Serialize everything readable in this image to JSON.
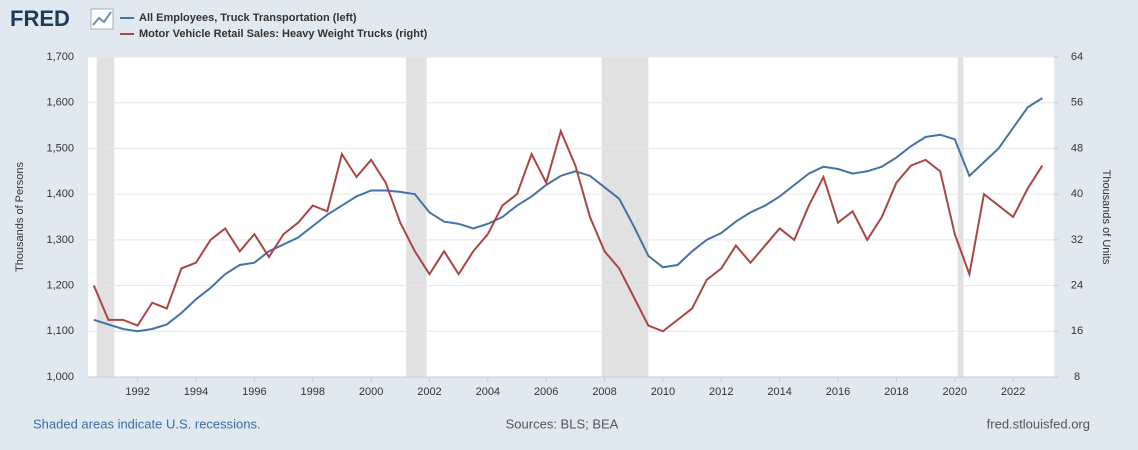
{
  "chart_data": {
    "type": "line",
    "logo": "FRED",
    "y_label": "Thousands of Persons",
    "y2_label": "Thousands of Units",
    "note": "Shaded areas indicate U.S. recessions.",
    "source": "Sources: BLS; BEA",
    "site": "fred.stlouisfed.org",
    "x": [
      1990.5,
      1991,
      1991.5,
      1992,
      1992.5,
      1993,
      1993.5,
      1994,
      1994.5,
      1995,
      1995.5,
      1996,
      1996.5,
      1997,
      1997.5,
      1998,
      1998.5,
      1999,
      1999.5,
      2000,
      2000.5,
      2001,
      2001.5,
      2002,
      2002.5,
      2003,
      2003.5,
      2004,
      2004.5,
      2005,
      2005.5,
      2006,
      2006.5,
      2007,
      2007.5,
      2008,
      2008.5,
      2009,
      2009.5,
      2010,
      2010.5,
      2011,
      2011.5,
      2012,
      2012.5,
      2013,
      2013.5,
      2014,
      2014.5,
      2015,
      2015.5,
      2016,
      2016.5,
      2017,
      2017.5,
      2018,
      2018.5,
      2019,
      2019.5,
      2020,
      2020.5,
      2021,
      2021.5,
      2022,
      2022.5,
      2023
    ],
    "series": [
      {
        "name": "All Employees, Truck Transportation (left)",
        "color": "#4572a7",
        "values": [
          1125,
          1115,
          1105,
          1100,
          1105,
          1115,
          1140,
          1170,
          1195,
          1225,
          1245,
          1250,
          1275,
          1290,
          1305,
          1330,
          1355,
          1375,
          1395,
          1408,
          1408,
          1405,
          1400,
          1360,
          1340,
          1335,
          1325,
          1335,
          1350,
          1375,
          1395,
          1420,
          1440,
          1450,
          1440,
          1415,
          1390,
          1330,
          1265,
          1240,
          1245,
          1275,
          1300,
          1315,
          1340,
          1360,
          1375,
          1395,
          1420,
          1445,
          1460,
          1455,
          1445,
          1450,
          1460,
          1480,
          1505,
          1525,
          1530,
          1520,
          1440,
          1470,
          1500,
          1545,
          1590,
          1610
        ]
      },
      {
        "name": "Motor Vehicle Retail Sales: Heavy Weight Trucks (right)",
        "color": "#aa4643",
        "axis": "y2",
        "values": [
          24,
          18,
          18,
          17,
          21,
          20,
          27,
          28,
          32,
          34,
          30,
          33,
          29,
          33,
          35,
          38,
          37,
          47,
          43,
          46,
          42,
          35,
          30,
          26,
          30,
          26,
          30,
          33,
          38,
          40,
          47,
          42,
          51,
          45,
          36,
          30,
          27,
          22,
          17,
          16,
          18,
          20,
          25,
          27,
          31,
          28,
          31,
          34,
          32,
          38,
          43,
          35,
          37,
          32,
          36,
          42,
          45,
          46,
          44,
          33,
          26,
          40,
          38,
          36,
          41,
          45
        ]
      }
    ],
    "recessions": [
      [
        1990.6,
        1991.2
      ],
      [
        2001.2,
        2001.9
      ],
      [
        2007.9,
        2009.5
      ],
      [
        2020.1,
        2020.3
      ]
    ],
    "xlim": [
      1990.3,
      2023.4
    ],
    "xticks": [
      1992,
      1994,
      1996,
      1998,
      2000,
      2002,
      2004,
      2006,
      2008,
      2010,
      2012,
      2014,
      2016,
      2018,
      2020,
      2022
    ],
    "ylim": [
      1000,
      1700
    ],
    "yticks": [
      {
        "value": 1000,
        "label": "1,000"
      },
      {
        "value": 1100,
        "label": "1,100"
      },
      {
        "value": 1200,
        "label": "1,200"
      },
      {
        "value": 1300,
        "label": "1,300"
      },
      {
        "value": 1400,
        "label": "1,400"
      },
      {
        "value": 1500,
        "label": "1,500"
      },
      {
        "value": 1600,
        "label": "1,600"
      },
      {
        "value": 1700,
        "label": "1,700"
      }
    ],
    "y2lim": [
      8,
      64
    ],
    "y2ticks": [
      8,
      16,
      24,
      32,
      40,
      48,
      56,
      64
    ],
    "grid": true
  }
}
